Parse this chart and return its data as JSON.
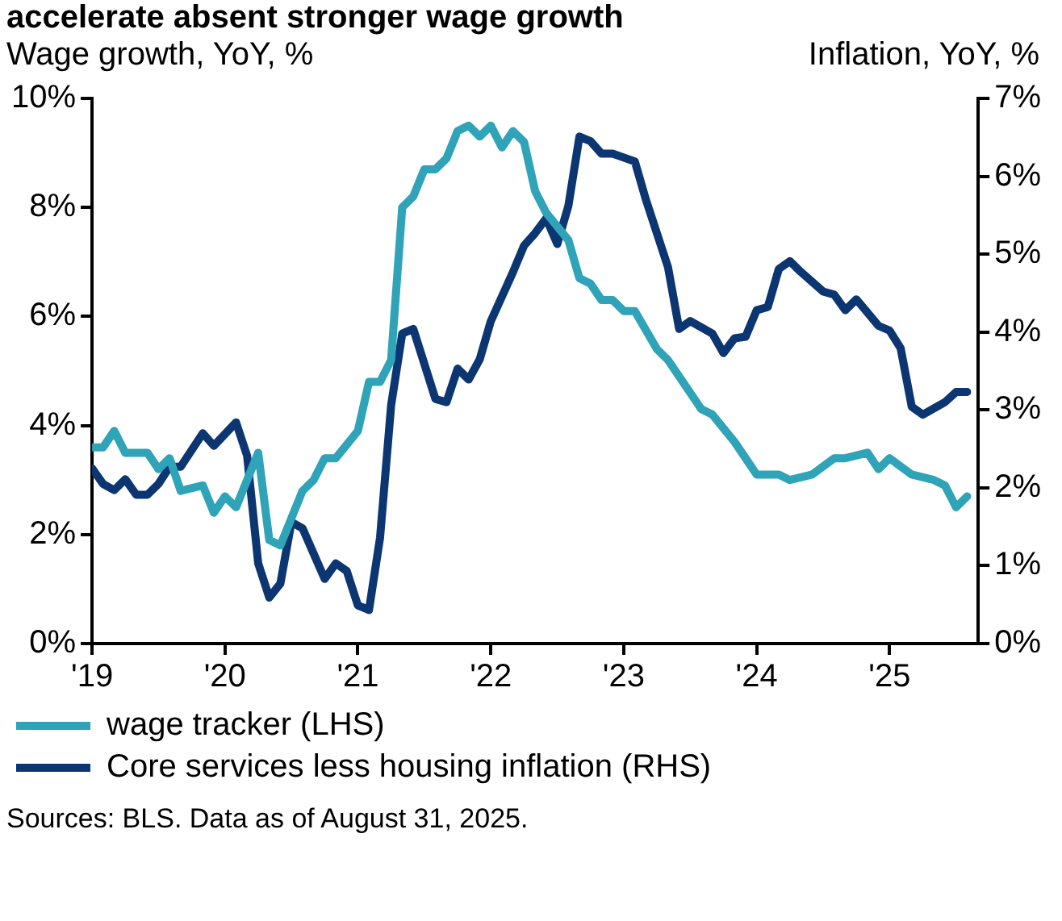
{
  "chart_data": {
    "type": "line",
    "title": "accelerate absent stronger wage growth",
    "ylabel": "Wage growth, YoY, %",
    "y2label": "Inflation, YoY, %",
    "xlim": [
      "2019-01",
      "2025-09"
    ],
    "xticks": [
      {
        "value": "2019-01",
        "label": "'19"
      },
      {
        "value": "2020-01",
        "label": "'20"
      },
      {
        "value": "2021-01",
        "label": "'21"
      },
      {
        "value": "2022-01",
        "label": "'22"
      },
      {
        "value": "2023-01",
        "label": "'23"
      },
      {
        "value": "2024-01",
        "label": "'24"
      },
      {
        "value": "2025-01",
        "label": "'25"
      }
    ],
    "ylim": [
      0,
      10
    ],
    "yticks": [
      {
        "value": 0,
        "label": "0%"
      },
      {
        "value": 2,
        "label": "2%"
      },
      {
        "value": 4,
        "label": "4%"
      },
      {
        "value": 6,
        "label": "6%"
      },
      {
        "value": 8,
        "label": "8%"
      },
      {
        "value": 10,
        "label": "10%"
      }
    ],
    "y2lim": [
      0,
      7
    ],
    "y2ticks": [
      {
        "value": 0,
        "label": "0%"
      },
      {
        "value": 1,
        "label": "1%"
      },
      {
        "value": 2,
        "label": "2%"
      },
      {
        "value": 3,
        "label": "3%"
      },
      {
        "value": 4,
        "label": "4%"
      },
      {
        "value": 5,
        "label": "5%"
      },
      {
        "value": 6,
        "label": "6%"
      },
      {
        "value": 7,
        "label": "7%"
      }
    ],
    "grid": false,
    "legend": "bottom",
    "marker": "none",
    "line_style": "solid",
    "annotations": [
      "Sources: BLS. Data as of August 31, 2025."
    ],
    "series": [
      {
        "name": "wage tracker (LHS)",
        "color": "#2fa3b8",
        "x": [
          "2019-01",
          "2019-02",
          "2019-03",
          "2019-04",
          "2019-05",
          "2019-06",
          "2019-07",
          "2019-08",
          "2019-09",
          "2019-11",
          "2019-12",
          "2020-01",
          "2020-02",
          "2020-04",
          "2020-05",
          "2020-06",
          "2020-08",
          "2020-09",
          "2020-10",
          "2020-11",
          "2021-01",
          "2021-02",
          "2021-03",
          "2021-04",
          "2021-05",
          "2021-06",
          "2021-07",
          "2021-08",
          "2021-09",
          "2021-10",
          "2021-11",
          "2021-12",
          "2022-01",
          "2022-02",
          "2022-03",
          "2022-04",
          "2022-05",
          "2022-06",
          "2022-08",
          "2022-09",
          "2022-10",
          "2022-11",
          "2022-12",
          "2023-01",
          "2023-02",
          "2023-04",
          "2023-05",
          "2023-06",
          "2023-07",
          "2023-08",
          "2023-09",
          "2023-11",
          "2023-12",
          "2024-01",
          "2024-03",
          "2024-04",
          "2024-06",
          "2024-08",
          "2024-09",
          "2024-11",
          "2024-12",
          "2025-01",
          "2025-03",
          "2025-05",
          "2025-06",
          "2025-07",
          "2025-08"
        ],
        "values": [
          3.6,
          3.6,
          3.9,
          3.5,
          3.5,
          3.5,
          3.2,
          3.4,
          2.8,
          2.9,
          2.4,
          2.7,
          2.5,
          3.5,
          1.9,
          1.8,
          2.8,
          3.0,
          3.4,
          3.4,
          3.9,
          4.8,
          4.8,
          5.2,
          8.0,
          8.2,
          8.7,
          8.7,
          8.9,
          9.4,
          9.5,
          9.3,
          9.5,
          9.1,
          9.4,
          9.2,
          8.3,
          7.9,
          7.4,
          6.7,
          6.6,
          6.3,
          6.3,
          6.1,
          6.1,
          5.4,
          5.2,
          4.9,
          4.6,
          4.3,
          4.2,
          3.7,
          3.4,
          3.1,
          3.1,
          3.0,
          3.1,
          3.4,
          3.4,
          3.5,
          3.2,
          3.4,
          3.1,
          3.0,
          2.9,
          2.5,
          2.7
        ]
      },
      {
        "name": "Core services less housing inflation (RHS)",
        "color": "#0b3672",
        "axis": "y2",
        "x": [
          "2019-01",
          "2019-02",
          "2019-03",
          "2019-04",
          "2019-05",
          "2019-06",
          "2019-07",
          "2019-08",
          "2019-09",
          "2019-11",
          "2019-12",
          "2020-02",
          "2020-03",
          "2020-04",
          "2020-05",
          "2020-06",
          "2020-07",
          "2020-08",
          "2020-10",
          "2020-11",
          "2020-12",
          "2021-01",
          "2021-02",
          "2021-03",
          "2021-04",
          "2021-05",
          "2021-06",
          "2021-08",
          "2021-09",
          "2021-10",
          "2021-11",
          "2021-12",
          "2022-01",
          "2022-03",
          "2022-04",
          "2022-05",
          "2022-06",
          "2022-07",
          "2022-08",
          "2022-09",
          "2022-10",
          "2022-11",
          "2022-12",
          "2023-02",
          "2023-03",
          "2023-05",
          "2023-06",
          "2023-07",
          "2023-09",
          "2023-10",
          "2023-11",
          "2023-12",
          "2024-01",
          "2024-02",
          "2024-03",
          "2024-04",
          "2024-05",
          "2024-07",
          "2024-08",
          "2024-09",
          "2024-10",
          "2024-12",
          "2025-01",
          "2025-02",
          "2025-03",
          "2025-04",
          "2025-06",
          "2025-07",
          "2025-08"
        ],
        "values": [
          2.25,
          2.05,
          1.97,
          2.11,
          1.91,
          1.91,
          2.05,
          2.27,
          2.27,
          2.7,
          2.54,
          2.84,
          2.41,
          1.03,
          0.59,
          0.77,
          1.56,
          1.48,
          0.83,
          1.03,
          0.93,
          0.49,
          0.43,
          1.36,
          3.06,
          3.98,
          4.04,
          3.14,
          3.1,
          3.53,
          3.39,
          3.65,
          4.14,
          4.77,
          5.11,
          5.27,
          5.46,
          5.13,
          5.62,
          6.51,
          6.45,
          6.29,
          6.29,
          6.19,
          5.7,
          4.83,
          4.04,
          4.14,
          3.98,
          3.73,
          3.92,
          3.94,
          4.28,
          4.32,
          4.81,
          4.91,
          4.77,
          4.52,
          4.48,
          4.28,
          4.42,
          4.08,
          4.02,
          3.79,
          3.04,
          2.94,
          3.1,
          3.23,
          3.23
        ]
      }
    ]
  }
}
